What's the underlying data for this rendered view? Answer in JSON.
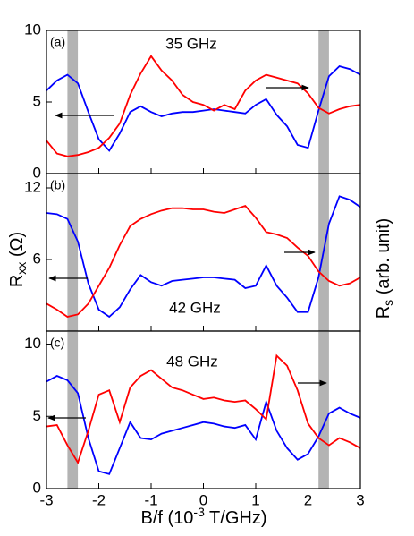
{
  "chart_data": [
    {
      "type": "line",
      "label": "(a)",
      "annotation": "35 GHz",
      "x": [
        -3,
        -2.8,
        -2.6,
        -2.4,
        -2.2,
        -2,
        -1.8,
        -1.6,
        -1.4,
        -1.2,
        -1,
        -0.8,
        -0.6,
        -0.4,
        -0.2,
        0,
        0.2,
        0.4,
        0.6,
        0.8,
        1,
        1.2,
        1.4,
        1.6,
        1.8,
        2,
        2.2,
        2.4,
        2.6,
        2.8,
        3
      ],
      "series": [
        {
          "color": "#0000ff",
          "values": [
            5.8,
            6.5,
            6.9,
            6.3,
            4.3,
            2.4,
            1.6,
            2.8,
            4.3,
            4.7,
            4.3,
            4.0,
            4.2,
            4.3,
            4.3,
            4.4,
            4.5,
            4.4,
            4.3,
            4.2,
            4.8,
            5.2,
            4.1,
            3.3,
            2.0,
            1.8,
            4.4,
            6.8,
            7.5,
            7.3,
            6.9
          ]
        },
        {
          "color": "#ff0000",
          "values": [
            2.3,
            1.4,
            1.2,
            1.3,
            1.5,
            1.8,
            2.5,
            3.5,
            5.5,
            7.0,
            8.2,
            7.2,
            6.5,
            5.5,
            5.0,
            4.8,
            4.4,
            4.8,
            4.5,
            5.8,
            6.5,
            6.9,
            6.7,
            6.5,
            6.3,
            5.6,
            4.6,
            4.2,
            4.5,
            4.7,
            4.8
          ]
        }
      ],
      "xlim": [
        -3,
        3
      ],
      "xticks": [
        -3,
        -2,
        -1,
        0,
        1,
        2,
        3
      ],
      "xtick_labels": false,
      "ylim": [
        0,
        10
      ],
      "yticks": [
        0,
        5,
        10
      ],
      "bands": [
        [
          -2.6,
          -2.4
        ],
        [
          2.2,
          2.4
        ]
      ],
      "band_color": "#b3b3b3"
    },
    {
      "type": "line",
      "label": "(b)",
      "annotation": "42 GHz",
      "x": [
        -3,
        -2.8,
        -2.6,
        -2.4,
        -2.2,
        -2,
        -1.8,
        -1.6,
        -1.4,
        -1.2,
        -1,
        -0.8,
        -0.6,
        -0.4,
        -0.2,
        0,
        0.2,
        0.4,
        0.6,
        0.8,
        1,
        1.2,
        1.4,
        1.6,
        1.8,
        2,
        2.2,
        2.4,
        2.6,
        2.8,
        3
      ],
      "series": [
        {
          "color": "#0000ff",
          "values": [
            9.9,
            9.8,
            9.4,
            7.5,
            4.0,
            1.8,
            1.2,
            2.0,
            3.5,
            4.7,
            4.1,
            3.8,
            4.2,
            4.3,
            4.4,
            4.5,
            4.5,
            4.4,
            4.3,
            3.6,
            3.8,
            5.5,
            3.8,
            2.8,
            1.6,
            1.6,
            4.5,
            9.0,
            11.3,
            11.0,
            10.4
          ]
        },
        {
          "color": "#ff0000",
          "values": [
            2.3,
            1.8,
            1.2,
            1.4,
            2.3,
            3.8,
            5.3,
            7.2,
            8.8,
            9.4,
            9.8,
            10.1,
            10.3,
            10.3,
            10.2,
            10.2,
            10.0,
            9.9,
            10.2,
            10.5,
            9.5,
            8.3,
            8.1,
            7.8,
            7.0,
            6.3,
            5.0,
            4.2,
            3.8,
            4.0,
            4.5
          ]
        }
      ],
      "xlim": [
        -3,
        3
      ],
      "xticks": [
        -3,
        -2,
        -1,
        0,
        1,
        2,
        3
      ],
      "xtick_labels": false,
      "ylim": [
        0,
        13.2
      ],
      "yticks": [
        6,
        12
      ],
      "bands": [
        [
          -2.6,
          -2.4
        ],
        [
          2.2,
          2.4
        ]
      ],
      "band_color": "#b3b3b3"
    },
    {
      "type": "line",
      "label": "(c)",
      "annotation": "48 GHz",
      "x": [
        -3,
        -2.8,
        -2.6,
        -2.4,
        -2.2,
        -2,
        -1.8,
        -1.6,
        -1.4,
        -1.2,
        -1,
        -0.8,
        -0.6,
        -0.4,
        -0.2,
        0,
        0.2,
        0.4,
        0.6,
        0.8,
        1,
        1.2,
        1.4,
        1.6,
        1.8,
        2,
        2.2,
        2.4,
        2.6,
        2.8,
        3
      ],
      "series": [
        {
          "color": "#0000ff",
          "values": [
            7.4,
            7.8,
            7.5,
            6.6,
            3.5,
            1.2,
            1.0,
            2.8,
            4.6,
            3.5,
            3.4,
            3.8,
            4.0,
            4.2,
            4.4,
            4.6,
            4.5,
            4.3,
            4.2,
            4.4,
            3.4,
            6.0,
            4.0,
            2.8,
            2.0,
            2.4,
            3.6,
            5.2,
            5.6,
            5.2,
            4.9
          ]
        },
        {
          "color": "#ff0000",
          "values": [
            4.3,
            4.4,
            3.0,
            1.8,
            4.0,
            6.5,
            6.8,
            4.6,
            7.0,
            7.8,
            8.2,
            7.6,
            7.0,
            6.8,
            6.5,
            6.2,
            6.3,
            6.1,
            6.0,
            6.1,
            5.5,
            4.8,
            9.2,
            8.5,
            6.8,
            4.5,
            3.5,
            3.0,
            3.5,
            3.2,
            2.8
          ]
        }
      ],
      "xlim": [
        -3,
        3
      ],
      "xticks": [
        -3,
        -2,
        -1,
        0,
        1,
        2,
        3
      ],
      "xtick_labels": true,
      "ylim": [
        0,
        10.9
      ],
      "yticks": [
        0,
        5,
        10
      ],
      "bands": [
        [
          -2.6,
          -2.4
        ],
        [
          2.2,
          2.4
        ]
      ],
      "band_color": "#b3b3b3"
    }
  ],
  "axis_labels": {
    "y_left": {
      "main": "R",
      "sub": "xx",
      "rest": " (Ω)"
    },
    "y_right": {
      "main": "R",
      "sub": "s",
      "rest": " (arb. unit)"
    },
    "x": {
      "main": "B/f (10",
      "sup": "-3",
      "rest": " T/GHz)"
    }
  }
}
